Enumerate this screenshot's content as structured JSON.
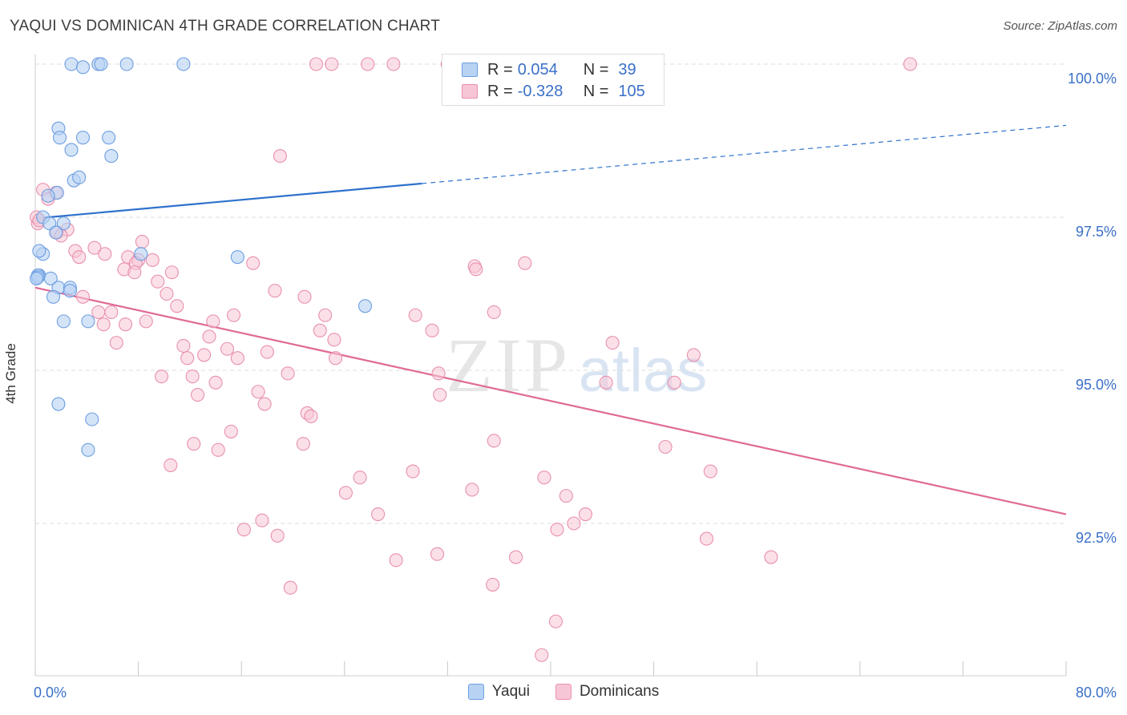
{
  "title": "YAQUI VS DOMINICAN 4TH GRADE CORRELATION CHART",
  "source": "Source: ZipAtlas.com",
  "watermark": {
    "zip": "ZIP",
    "atlas": "atlas"
  },
  "legend": {
    "yaqui": {
      "r_label": "R =",
      "r_value": "0.054",
      "n_label": "N =",
      "n_value": "39"
    },
    "dominicans": {
      "r_label": "R =",
      "r_value": "-0.328",
      "n_label": "N =",
      "n_value": "105"
    }
  },
  "bottom_legend": {
    "yaqui": "Yaqui",
    "dominicans": "Dominicans"
  },
  "colors": {
    "yaqui_fill": "#b8d2f4",
    "yaqui_stroke": "#6c9ee0",
    "yaqui_line": "#2f72cc",
    "dominican_fill": "#f7c6d6",
    "dominican_stroke": "#e890ae",
    "dominican_line": "#e06a96",
    "axis_text": "#3a70c8"
  },
  "chart_data": {
    "type": "scatter",
    "title": "YAQUI VS DOMINICAN 4TH GRADE CORRELATION CHART",
    "xlabel": "",
    "ylabel": "4th Grade",
    "xlim": [
      0,
      80
    ],
    "ylim": [
      90.0,
      100.2
    ],
    "x_tick_labels": [
      {
        "value": 0,
        "label": "0.0%"
      },
      {
        "value": 80,
        "label": "80.0%"
      }
    ],
    "y_tick_labels": [
      {
        "value": 100,
        "label": "100.0%"
      },
      {
        "value": 97.5,
        "label": "97.5%"
      },
      {
        "value": 95,
        "label": "95.0%"
      },
      {
        "value": 92.5,
        "label": "92.5%"
      }
    ],
    "grid": true,
    "series": [
      {
        "name": "Yaqui",
        "color": "#6c9ee0",
        "points": [
          [
            2.8,
            100.0
          ],
          [
            3.7,
            99.95
          ],
          [
            4.9,
            100.0
          ],
          [
            5.1,
            100.0
          ],
          [
            7.1,
            100.0
          ],
          [
            11.5,
            100.0
          ],
          [
            1.8,
            98.95
          ],
          [
            1.9,
            98.8
          ],
          [
            3.7,
            98.8
          ],
          [
            5.7,
            98.8
          ],
          [
            2.8,
            98.6
          ],
          [
            5.9,
            98.5
          ],
          [
            3.0,
            98.1
          ],
          [
            3.4,
            98.15
          ],
          [
            1.7,
            97.9
          ],
          [
            1.0,
            97.85
          ],
          [
            0.6,
            97.5
          ],
          [
            1.1,
            97.4
          ],
          [
            2.2,
            97.4
          ],
          [
            1.6,
            97.25
          ],
          [
            0.6,
            96.9
          ],
          [
            0.3,
            96.95
          ],
          [
            8.2,
            96.9
          ],
          [
            15.7,
            96.85
          ],
          [
            0.3,
            96.55
          ],
          [
            1.2,
            96.5
          ],
          [
            1.8,
            96.35
          ],
          [
            2.7,
            96.35
          ],
          [
            2.7,
            96.3
          ],
          [
            1.4,
            96.2
          ],
          [
            25.6,
            96.05
          ],
          [
            2.2,
            95.8
          ],
          [
            4.1,
            95.8
          ],
          [
            1.8,
            94.45
          ],
          [
            4.4,
            94.2
          ],
          [
            4.1,
            93.7
          ],
          [
            0.2,
            96.55
          ],
          [
            0.2,
            96.52
          ],
          [
            0.1,
            96.5
          ]
        ]
      },
      {
        "name": "Dominicans",
        "color": "#e890ae",
        "points": [
          [
            21.8,
            100.0
          ],
          [
            23.0,
            100.0
          ],
          [
            25.8,
            100.0
          ],
          [
            27.8,
            100.0
          ],
          [
            32.0,
            100.0
          ],
          [
            67.9,
            100.0
          ],
          [
            19.0,
            98.5
          ],
          [
            0.6,
            97.95
          ],
          [
            1.6,
            97.9
          ],
          [
            1.0,
            97.8
          ],
          [
            0.2,
            97.4
          ],
          [
            2.5,
            97.3
          ],
          [
            1.7,
            97.25
          ],
          [
            2.0,
            97.2
          ],
          [
            8.3,
            97.1
          ],
          [
            4.6,
            97.0
          ],
          [
            3.1,
            96.95
          ],
          [
            5.4,
            96.9
          ],
          [
            3.4,
            96.85
          ],
          [
            7.2,
            96.85
          ],
          [
            8.0,
            96.8
          ],
          [
            9.1,
            96.8
          ],
          [
            7.8,
            96.75
          ],
          [
            16.9,
            96.75
          ],
          [
            6.9,
            96.65
          ],
          [
            34.1,
            96.7
          ],
          [
            34.2,
            96.65
          ],
          [
            38.0,
            96.75
          ],
          [
            7.7,
            96.6
          ],
          [
            10.6,
            96.6
          ],
          [
            9.5,
            96.45
          ],
          [
            18.6,
            96.3
          ],
          [
            10.2,
            96.25
          ],
          [
            3.7,
            96.2
          ],
          [
            20.9,
            96.2
          ],
          [
            11.0,
            96.05
          ],
          [
            4.9,
            95.95
          ],
          [
            5.9,
            95.95
          ],
          [
            15.4,
            95.9
          ],
          [
            22.5,
            95.9
          ],
          [
            29.5,
            95.9
          ],
          [
            35.6,
            95.95
          ],
          [
            13.8,
            95.8
          ],
          [
            8.6,
            95.8
          ],
          [
            7.0,
            95.75
          ],
          [
            5.3,
            95.75
          ],
          [
            22.1,
            95.65
          ],
          [
            30.8,
            95.65
          ],
          [
            13.5,
            95.55
          ],
          [
            6.3,
            95.45
          ],
          [
            23.2,
            95.5
          ],
          [
            44.8,
            95.45
          ],
          [
            11.5,
            95.4
          ],
          [
            14.9,
            95.35
          ],
          [
            18.0,
            95.3
          ],
          [
            11.8,
            95.2
          ],
          [
            13.1,
            95.25
          ],
          [
            15.7,
            95.2
          ],
          [
            23.3,
            95.2
          ],
          [
            51.1,
            95.25
          ],
          [
            19.6,
            94.95
          ],
          [
            31.3,
            94.95
          ],
          [
            9.8,
            94.9
          ],
          [
            12.2,
            94.9
          ],
          [
            44.3,
            94.8
          ],
          [
            14.0,
            94.8
          ],
          [
            49.6,
            94.8
          ],
          [
            17.3,
            94.65
          ],
          [
            12.6,
            94.6
          ],
          [
            31.4,
            94.6
          ],
          [
            17.8,
            94.45
          ],
          [
            21.1,
            94.3
          ],
          [
            21.4,
            94.25
          ],
          [
            15.2,
            94.0
          ],
          [
            12.3,
            93.8
          ],
          [
            20.8,
            93.8
          ],
          [
            35.6,
            93.85
          ],
          [
            14.2,
            93.7
          ],
          [
            48.9,
            93.75
          ],
          [
            10.5,
            93.45
          ],
          [
            29.3,
            93.35
          ],
          [
            25.2,
            93.25
          ],
          [
            39.5,
            93.25
          ],
          [
            52.4,
            93.35
          ],
          [
            33.9,
            93.05
          ],
          [
            24.1,
            93.0
          ],
          [
            41.2,
            92.95
          ],
          [
            26.6,
            92.65
          ],
          [
            42.7,
            92.65
          ],
          [
            17.6,
            92.55
          ],
          [
            41.8,
            92.5
          ],
          [
            16.2,
            92.4
          ],
          [
            40.5,
            92.4
          ],
          [
            18.8,
            92.3
          ],
          [
            52.1,
            92.25
          ],
          [
            31.2,
            92.0
          ],
          [
            37.3,
            91.95
          ],
          [
            57.1,
            91.95
          ],
          [
            28.0,
            91.9
          ],
          [
            35.5,
            91.5
          ],
          [
            19.8,
            91.45
          ],
          [
            40.4,
            90.9
          ],
          [
            39.3,
            90.35
          ],
          [
            0.1,
            97.5
          ],
          [
            0.3,
            97.45
          ]
        ]
      }
    ],
    "trendlines": [
      {
        "series": "Yaqui",
        "solid_from": [
          0,
          97.48
        ],
        "solid_to": [
          30,
          98.05
        ],
        "dashed_to": [
          80,
          99.0
        ]
      },
      {
        "series": "Dominicans",
        "from": [
          0,
          96.35
        ],
        "to": [
          80,
          92.65
        ]
      }
    ],
    "legend_position": "top-center"
  }
}
